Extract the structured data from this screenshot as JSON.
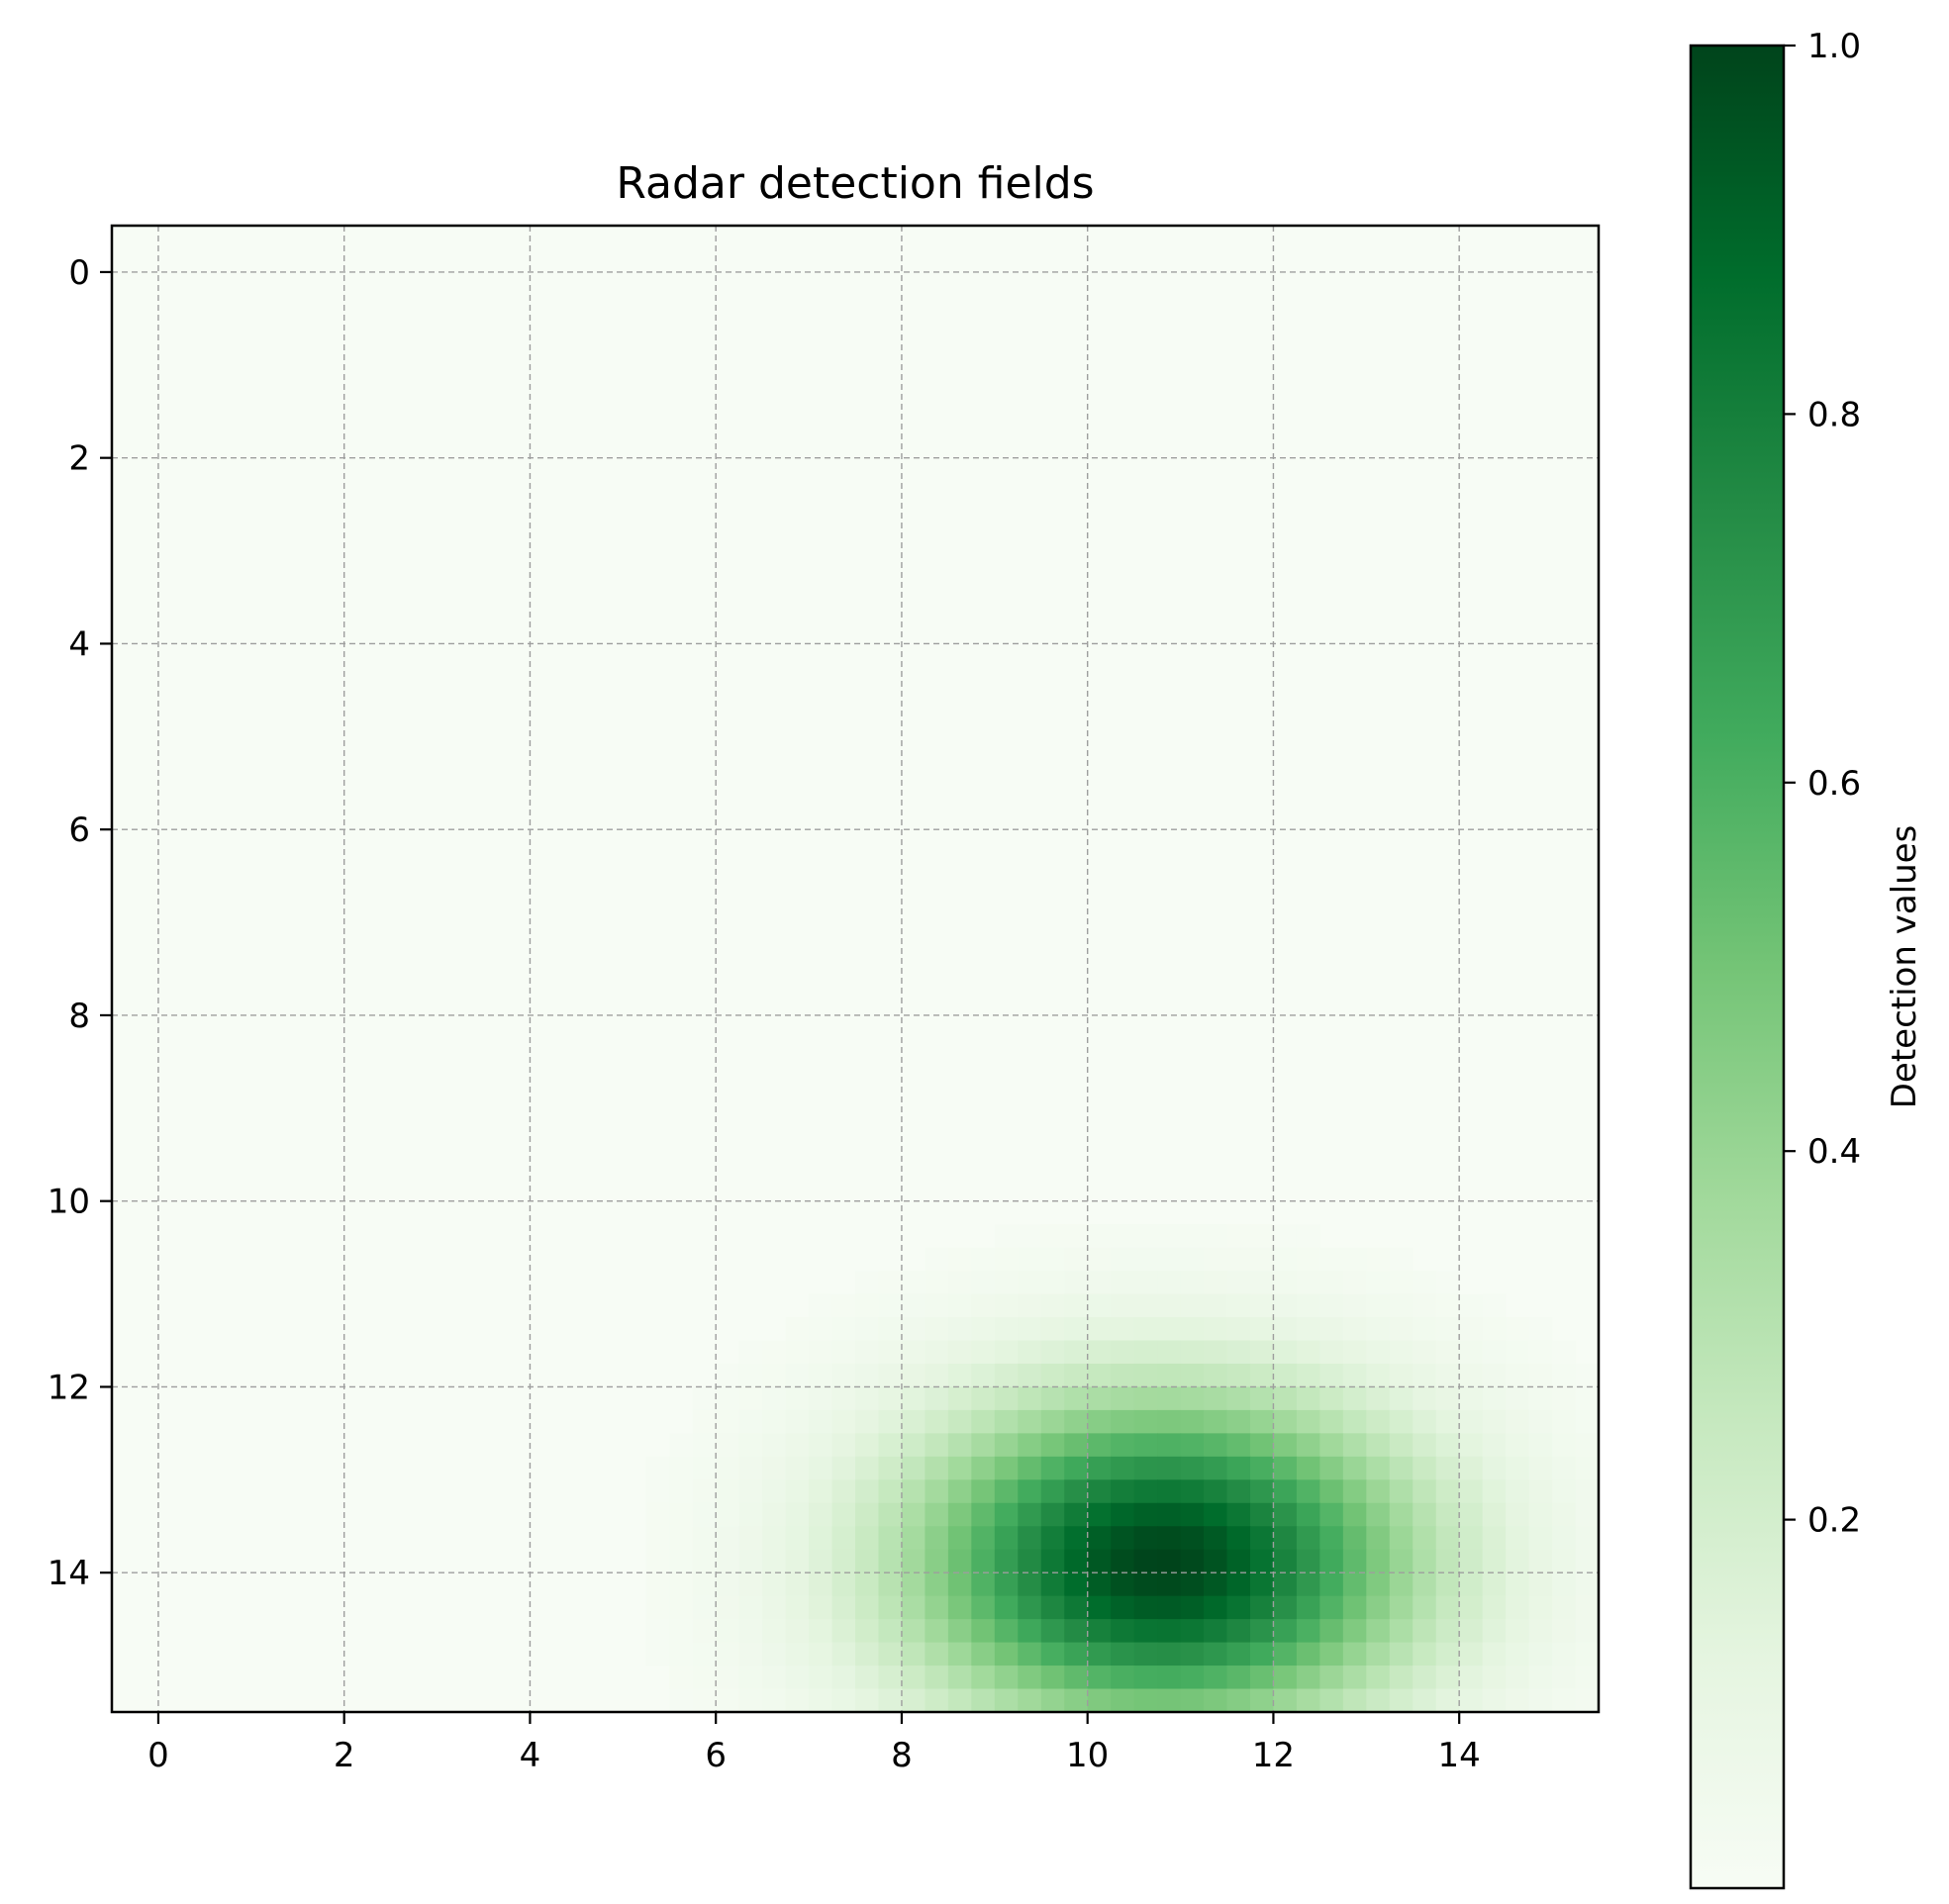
{
  "chart_data": {
    "type": "heatmap",
    "title": "Radar detection fields",
    "colorbar_label": "Detection values",
    "colormap": "Greens",
    "colormap_stops": [
      "#f7fcf5",
      "#e5f5e0",
      "#c7e9c0",
      "#a1d99b",
      "#74c476",
      "#41ab5d",
      "#238b45",
      "#006d2c",
      "#00441b"
    ],
    "x_ticks": [
      0,
      2,
      4,
      6,
      8,
      10,
      12,
      14
    ],
    "y_ticks": [
      0,
      2,
      4,
      6,
      8,
      10,
      12,
      14
    ],
    "x_tick_labels": [
      "0",
      "2",
      "4",
      "6",
      "8",
      "10",
      "12",
      "14"
    ],
    "y_tick_labels": [
      "0",
      "2",
      "4",
      "6",
      "8",
      "10",
      "12",
      "14"
    ],
    "xlim": [
      -0.5,
      15.5
    ],
    "ylim": [
      15.5,
      -0.5
    ],
    "colorbar_range": [
      0.0,
      1.0
    ],
    "colorbar_ticks": [
      0.2,
      0.4,
      0.6,
      0.8,
      1.0
    ],
    "colorbar_tick_labels": [
      "0.2",
      "0.4",
      "0.6",
      "0.8",
      "1.0"
    ],
    "grid": true,
    "grid_style": "dashed",
    "field": {
      "peak_x": 10.8,
      "peak_y": 13.9,
      "peak_value": 1.0,
      "spread_x": 1.9,
      "spread_y": 1.25
    }
  }
}
